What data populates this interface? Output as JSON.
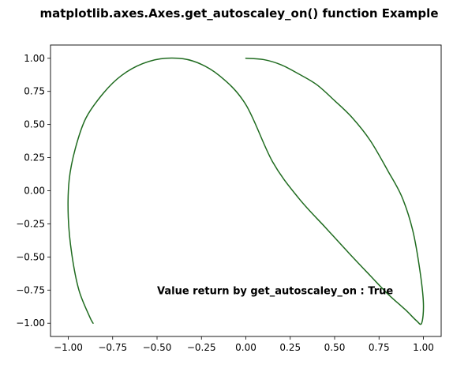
{
  "chart_data": {
    "type": "line",
    "title": "matplotlib.axes.Axes.get_autoscaley_on() function Example",
    "xlabel": "",
    "ylabel": "",
    "xlim": [
      -1.1,
      1.1
    ],
    "ylim": [
      -1.1,
      1.1
    ],
    "xticks": [
      -1.0,
      -0.75,
      -0.5,
      -0.25,
      0.0,
      0.25,
      0.5,
      0.75,
      1.0
    ],
    "xtick_labels": [
      "−1.00",
      "−0.75",
      "−0.50",
      "−0.25",
      "0.00",
      "0.25",
      "0.50",
      "0.75",
      "1.00"
    ],
    "yticks": [
      1.0,
      0.75,
      0.5,
      0.25,
      0.0,
      -0.25,
      -0.5,
      -0.75,
      -1.0
    ],
    "ytick_labels": [
      "1.00",
      "0.75",
      "0.50",
      "0.25",
      "0.00",
      "−0.25",
      "−0.50",
      "−0.75",
      "−1.00"
    ],
    "grid": false,
    "line_color": "#1f6b1f",
    "series": [
      {
        "x": [
          0.0,
          0.1,
          0.2,
          0.3,
          0.4,
          0.5,
          0.6,
          0.7,
          0.8,
          0.88,
          0.94,
          0.98,
          1.0,
          0.99,
          0.96,
          0.9,
          0.8,
          0.7,
          0.58,
          0.45,
          0.3,
          0.15,
          0.0,
          -0.15,
          -0.3,
          -0.45,
          -0.58,
          -0.7,
          -0.8,
          -0.9,
          -0.96,
          -0.995,
          -1.0,
          -0.98,
          -0.94,
          -0.88,
          -0.86
        ],
        "y": [
          1.0,
          0.99,
          0.95,
          0.88,
          0.8,
          0.68,
          0.55,
          0.38,
          0.15,
          -0.05,
          -0.3,
          -0.6,
          -0.85,
          -1.0,
          -0.98,
          -0.9,
          -0.78,
          -0.64,
          -0.47,
          -0.28,
          -0.06,
          0.22,
          0.65,
          0.87,
          0.98,
          1.0,
          0.96,
          0.87,
          0.74,
          0.55,
          0.32,
          0.08,
          -0.2,
          -0.48,
          -0.75,
          -0.95,
          -1.0
        ]
      }
    ],
    "annotation": {
      "text": "Value return by get_autoscaley_on : True",
      "x": -0.5,
      "y": -0.75
    }
  }
}
